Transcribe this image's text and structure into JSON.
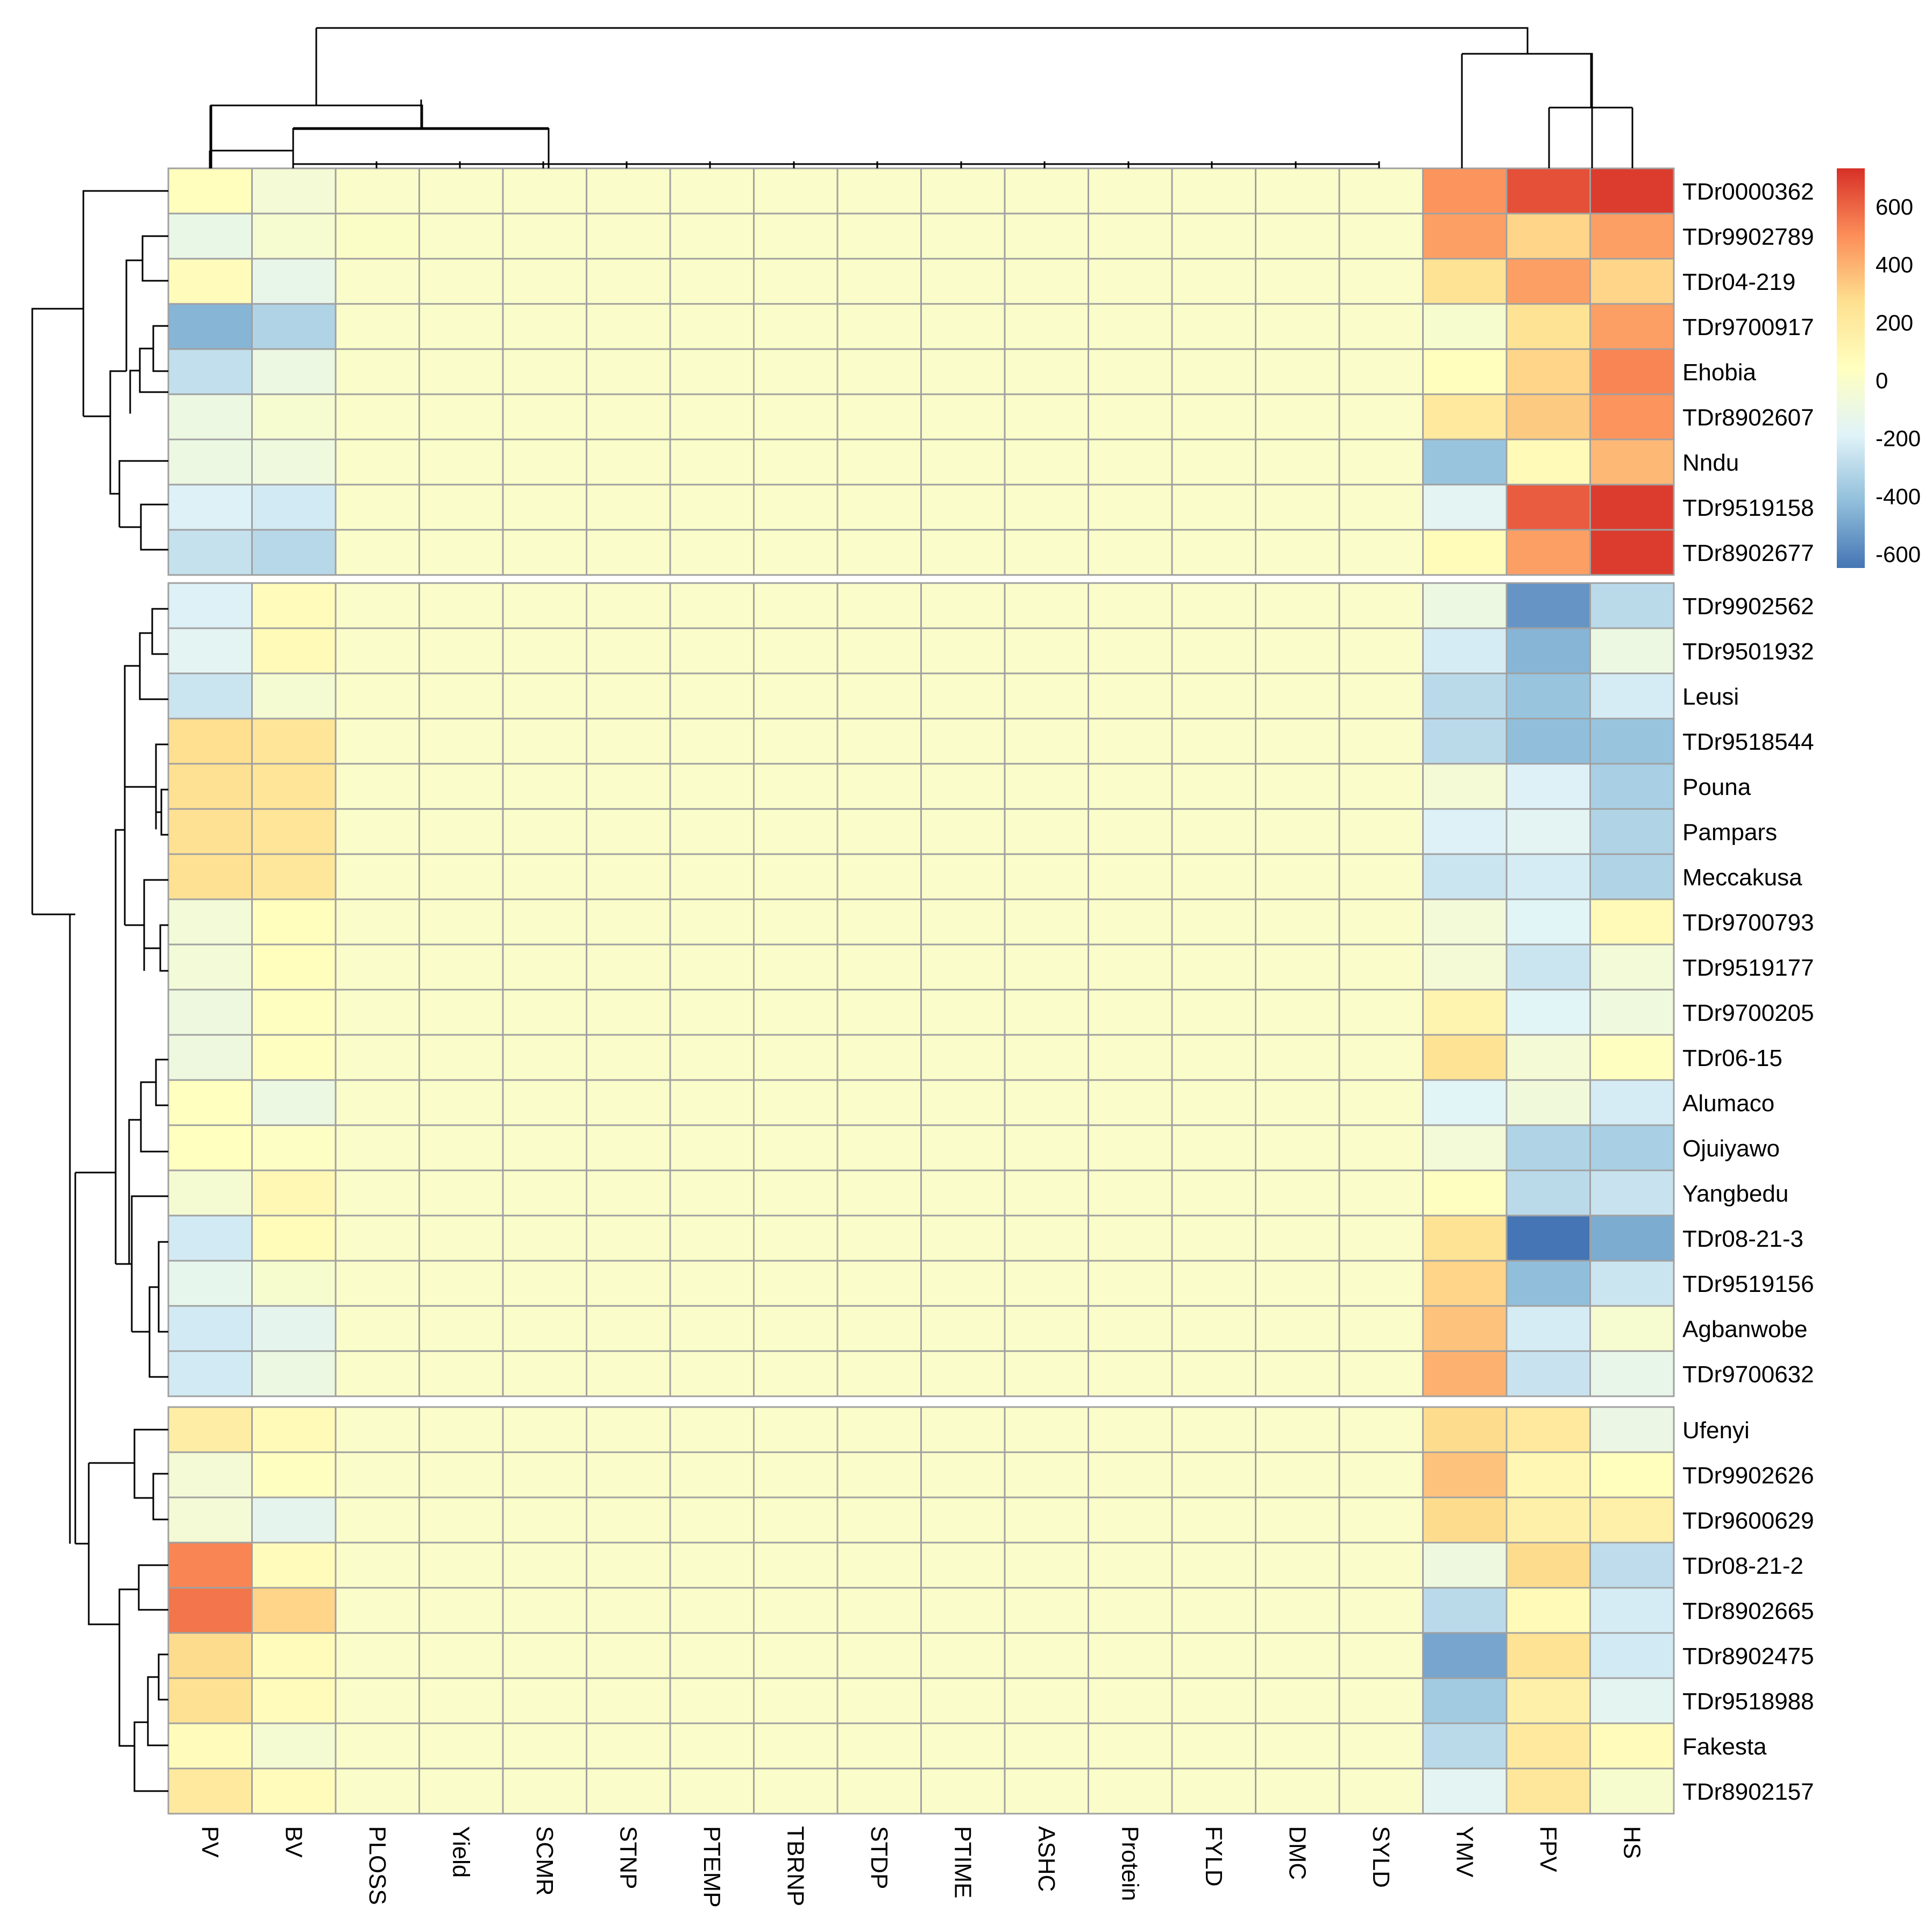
{
  "chart_data": {
    "type": "heatmap",
    "title": "",
    "columns": [
      "PV",
      "BV",
      "PLOSS",
      "Yield",
      "SCMR",
      "STNP",
      "PTEMP",
      "TBRNP",
      "STDP",
      "PTIME",
      "ASHC",
      "Protein",
      "FYLD",
      "DMC",
      "SYLD",
      "YMV",
      "FPV",
      "HS"
    ],
    "rows": [
      "TDr0000362",
      "TDr9902789",
      "TDr04-219",
      "TDr9700917",
      "Ehobia",
      "TDr8902607",
      "Nndu",
      "TDr9519158",
      "TDr8902677",
      "TDr9902562",
      "TDr9501932",
      "Leusi",
      "TDr9518544",
      "Pouna",
      "Pampars",
      "Meccakusa",
      "TDr9700793",
      "TDr9519177",
      "TDr9700205",
      "TDr06-15",
      "Alumaco",
      "Ojuiyawo",
      "Yangbedu",
      "TDr08-21-3",
      "TDr9519156",
      "Agbanwobe",
      "TDr9700632",
      "Ufenyi",
      "TDr9902626",
      "TDr9600629",
      "TDr08-21-2",
      "TDr8902665",
      "TDr8902475",
      "TDr9518988",
      "Fakesta",
      "TDr8902157"
    ],
    "row_groups": [
      9,
      18,
      9
    ],
    "values": [
      [
        50,
        -50,
        0,
        0,
        0,
        0,
        0,
        0,
        0,
        0,
        0,
        0,
        0,
        0,
        0,
        480,
        650,
        700
      ],
      [
        -120,
        -30,
        10,
        0,
        0,
        0,
        0,
        0,
        0,
        0,
        0,
        0,
        0,
        0,
        0,
        450,
        300,
        450
      ],
      [
        60,
        -130,
        0,
        0,
        0,
        0,
        0,
        0,
        0,
        0,
        0,
        0,
        0,
        0,
        0,
        250,
        450,
        300
      ],
      [
        -450,
        -330,
        0,
        0,
        0,
        0,
        0,
        0,
        0,
        0,
        0,
        0,
        0,
        0,
        0,
        -20,
        250,
        450
      ],
      [
        -280,
        -100,
        0,
        0,
        0,
        0,
        0,
        0,
        0,
        0,
        0,
        0,
        0,
        0,
        0,
        50,
        300,
        520
      ],
      [
        -100,
        -30,
        0,
        0,
        0,
        0,
        0,
        0,
        0,
        0,
        0,
        0,
        0,
        0,
        0,
        200,
        330,
        480
      ],
      [
        -100,
        -80,
        0,
        0,
        0,
        0,
        0,
        0,
        0,
        0,
        0,
        0,
        0,
        0,
        0,
        -400,
        80,
        380
      ],
      [
        -200,
        -230,
        0,
        0,
        0,
        0,
        0,
        0,
        0,
        0,
        0,
        0,
        0,
        0,
        0,
        -170,
        620,
        700
      ],
      [
        -270,
        -310,
        0,
        0,
        0,
        0,
        0,
        0,
        0,
        0,
        0,
        0,
        0,
        0,
        0,
        70,
        450,
        700
      ],
      [
        -200,
        60,
        0,
        0,
        0,
        0,
        0,
        0,
        0,
        0,
        0,
        0,
        0,
        0,
        0,
        -100,
        -550,
        -300
      ],
      [
        -170,
        80,
        0,
        0,
        0,
        0,
        0,
        0,
        0,
        0,
        0,
        0,
        0,
        0,
        0,
        -220,
        -450,
        -100
      ],
      [
        -250,
        -40,
        0,
        0,
        0,
        0,
        0,
        0,
        0,
        0,
        0,
        0,
        0,
        0,
        0,
        -300,
        -400,
        -220
      ],
      [
        270,
        230,
        0,
        0,
        0,
        0,
        0,
        0,
        0,
        0,
        0,
        0,
        0,
        0,
        0,
        -300,
        -420,
        -400
      ],
      [
        260,
        230,
        0,
        0,
        0,
        0,
        0,
        0,
        0,
        0,
        0,
        0,
        0,
        0,
        0,
        -50,
        -200,
        -350
      ],
      [
        260,
        230,
        0,
        0,
        0,
        0,
        0,
        0,
        0,
        0,
        0,
        0,
        0,
        0,
        0,
        -200,
        -170,
        -330
      ],
      [
        260,
        220,
        0,
        0,
        0,
        0,
        0,
        0,
        0,
        0,
        0,
        0,
        0,
        0,
        0,
        -250,
        -220,
        -330
      ],
      [
        -60,
        50,
        0,
        0,
        0,
        0,
        0,
        0,
        0,
        0,
        0,
        0,
        0,
        0,
        0,
        -60,
        -180,
        80
      ],
      [
        -60,
        50,
        0,
        0,
        0,
        0,
        0,
        0,
        0,
        0,
        0,
        0,
        0,
        0,
        0,
        -50,
        -250,
        -60
      ],
      [
        -90,
        30,
        0,
        0,
        0,
        0,
        0,
        0,
        0,
        0,
        0,
        0,
        0,
        0,
        0,
        120,
        -180,
        -80
      ],
      [
        -90,
        30,
        0,
        0,
        0,
        0,
        0,
        0,
        0,
        0,
        0,
        0,
        0,
        0,
        0,
        250,
        -50,
        30
      ],
      [
        40,
        -100,
        0,
        0,
        0,
        0,
        0,
        0,
        0,
        0,
        0,
        0,
        0,
        0,
        0,
        -180,
        -70,
        -220
      ],
      [
        40,
        20,
        0,
        0,
        0,
        0,
        0,
        0,
        0,
        0,
        0,
        0,
        0,
        0,
        0,
        -60,
        -330,
        -350
      ],
      [
        -40,
        90,
        0,
        0,
        0,
        0,
        0,
        0,
        0,
        0,
        0,
        0,
        0,
        0,
        0,
        30,
        -300,
        -260
      ],
      [
        -230,
        70,
        0,
        0,
        0,
        0,
        0,
        0,
        0,
        0,
        0,
        0,
        0,
        0,
        0,
        250,
        -650,
        -480
      ],
      [
        -140,
        -20,
        0,
        0,
        0,
        0,
        0,
        0,
        0,
        0,
        0,
        0,
        0,
        0,
        0,
        300,
        -420,
        -250
      ],
      [
        -230,
        -150,
        0,
        0,
        0,
        0,
        0,
        0,
        0,
        0,
        0,
        0,
        0,
        0,
        0,
        350,
        -220,
        -30
      ],
      [
        -230,
        -100,
        0,
        0,
        0,
        0,
        0,
        0,
        0,
        0,
        0,
        0,
        0,
        0,
        0,
        400,
        -260,
        -130
      ],
      [
        170,
        80,
        0,
        0,
        0,
        0,
        0,
        0,
        0,
        0,
        0,
        0,
        0,
        0,
        0,
        280,
        200,
        -110
      ],
      [
        -50,
        30,
        0,
        0,
        0,
        0,
        0,
        0,
        0,
        0,
        0,
        0,
        0,
        0,
        0,
        350,
        100,
        50
      ],
      [
        -50,
        -150,
        0,
        0,
        0,
        0,
        0,
        0,
        0,
        0,
        0,
        0,
        0,
        0,
        0,
        280,
        150,
        150
      ],
      [
        520,
        60,
        0,
        0,
        0,
        0,
        0,
        0,
        0,
        0,
        0,
        0,
        0,
        0,
        0,
        -90,
        280,
        -290
      ],
      [
        560,
        300,
        0,
        0,
        0,
        0,
        0,
        0,
        0,
        0,
        0,
        0,
        0,
        0,
        0,
        -300,
        80,
        -220
      ],
      [
        280,
        60,
        0,
        0,
        0,
        0,
        0,
        0,
        0,
        0,
        0,
        0,
        0,
        0,
        0,
        -500,
        250,
        -230
      ],
      [
        260,
        60,
        0,
        0,
        0,
        0,
        0,
        0,
        0,
        0,
        0,
        0,
        0,
        0,
        0,
        -370,
        150,
        -160
      ],
      [
        60,
        -40,
        0,
        0,
        0,
        0,
        0,
        0,
        0,
        0,
        0,
        0,
        0,
        0,
        0,
        -300,
        200,
        60
      ],
      [
        200,
        60,
        0,
        0,
        0,
        0,
        0,
        0,
        0,
        0,
        0,
        0,
        0,
        0,
        0,
        -170,
        220,
        -20
      ]
    ],
    "color_scale": {
      "min": -650,
      "max": 730,
      "ticks": [
        600,
        400,
        200,
        0,
        -200,
        -400,
        -600
      ],
      "tick_labels": [
        "600",
        "400",
        "200",
        "0",
        "-200",
        "-400",
        "-600"
      ],
      "colors": [
        "#4575b4",
        "#91bfdb",
        "#e0f3f8",
        "#ffffbf",
        "#fee090",
        "#fc8d59",
        "#d73027"
      ]
    }
  }
}
